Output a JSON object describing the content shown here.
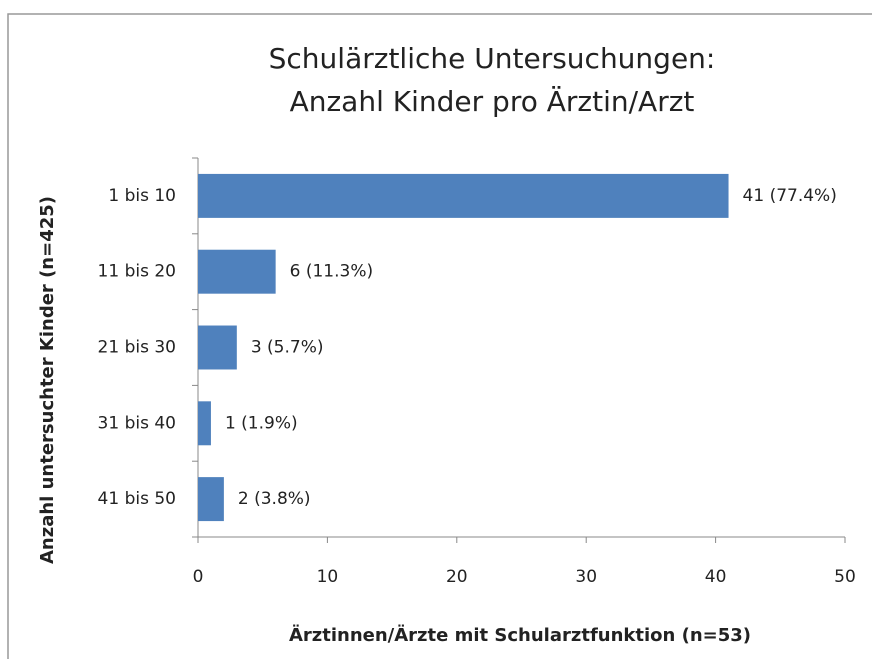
{
  "chart_data": {
    "type": "bar",
    "orientation": "horizontal",
    "title": [
      "Schulärztliche Untersuchungen:",
      "Anzahl Kinder pro Ärztin/Arzt"
    ],
    "x_label": "Ärztinnen/Ärzte mit Schularztfunktion (n=53)",
    "y_label": "Anzahl untersuchter Kinder (n=425)",
    "categories": [
      "1 bis 10",
      "11 bis 20",
      "21 bis 30",
      "31 bis 40",
      "41 bis 50"
    ],
    "values": [
      41,
      6,
      3,
      1,
      2
    ],
    "value_labels": [
      "41 (77.4%)",
      "6 (11.3%)",
      "3 (5.7%)",
      "1 (1.9%)",
      "2 (3.8%)"
    ],
    "color": "#4f81bd",
    "xlim": [
      0,
      50
    ],
    "xticks": [
      0,
      10,
      20,
      30,
      40,
      50
    ],
    "grid": false
  }
}
